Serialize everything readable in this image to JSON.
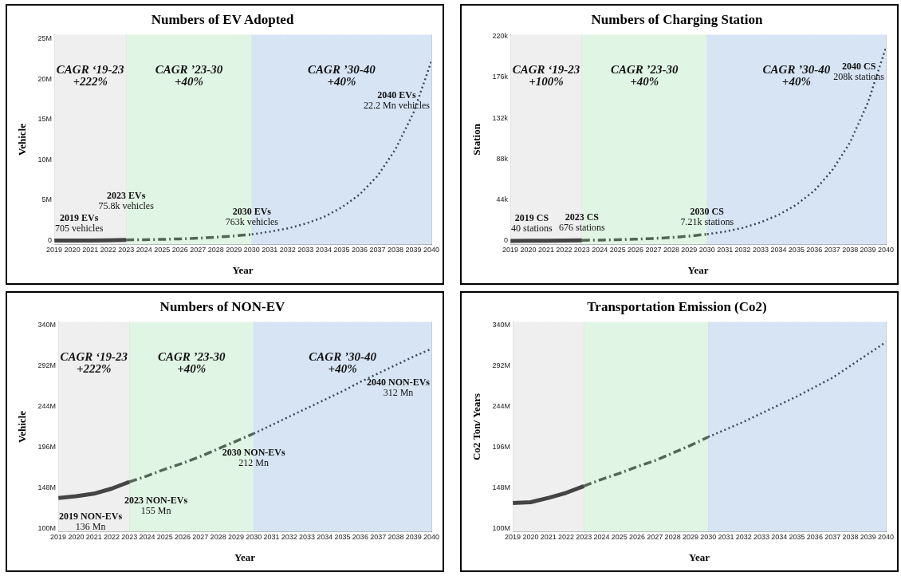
{
  "chart_data": [
    {
      "type": "line",
      "title": "Numbers of EV Adopted",
      "xlabel": "Year",
      "ylabel": "Vehicle",
      "xlim": [
        2019,
        2040
      ],
      "xticks": [
        2019,
        2020,
        2021,
        2022,
        2023,
        2024,
        2025,
        2026,
        2027,
        2028,
        2029,
        2030,
        2031,
        2032,
        2033,
        2034,
        2035,
        2036,
        2037,
        2038,
        2039,
        2040
      ],
      "ylim": [
        -500000,
        25500000
      ],
      "yticks": [
        {
          "value": 0,
          "label": "0"
        },
        {
          "value": 5000000,
          "label": "5M"
        },
        {
          "value": 10000000,
          "label": "10M"
        },
        {
          "value": 15000000,
          "label": "15M"
        },
        {
          "value": 20000000,
          "label": "20M"
        },
        {
          "value": 25000000,
          "label": "25M"
        }
      ],
      "grid": true,
      "marker": "none",
      "series": [
        {
          "color": "#444444",
          "line_style": "solid",
          "x": [
            2019,
            2020,
            2021,
            2022,
            2023
          ],
          "values": [
            705,
            2000,
            7000,
            24000,
            75800
          ]
        },
        {
          "color": "#556655",
          "line_style": "dashed",
          "x": [
            2023,
            2024,
            2025,
            2026,
            2027,
            2028,
            2029,
            2030
          ],
          "values": [
            75800,
            110000,
            150000,
            210000,
            290000,
            410000,
            570000,
            763000
          ]
        },
        {
          "color": "#3a4656",
          "line_style": "dotted",
          "x": [
            2030,
            2031,
            2032,
            2033,
            2034,
            2035,
            2036,
            2037,
            2038,
            2039,
            2040
          ],
          "values": [
            763000,
            1100000,
            1500000,
            2100000,
            2900000,
            4100000,
            5700000,
            8000000,
            11300000,
            15800000,
            22200000
          ]
        }
      ],
      "bands": [
        {
          "axis": "x",
          "from": 2019,
          "to": 2023,
          "color": "#efefef",
          "label": "CAGR ‘19-23\n+222%"
        },
        {
          "axis": "x",
          "from": 2023,
          "to": 2030,
          "color": "#e1f5e4",
          "label": "CAGR ’23-30\n+40%"
        },
        {
          "axis": "x",
          "from": 2030,
          "to": 2040,
          "color": "#d6e4f4",
          "label": "CAGR ’30-40\n+40%"
        }
      ],
      "annotations": [
        {
          "text": "2019 EVs\n705 vehicles",
          "x": 2019,
          "y": 705
        },
        {
          "text": "2023 EVs\n75.8k vehicles",
          "x": 2023,
          "y": 75800
        },
        {
          "text": "2030 EVs\n763k vehicles",
          "x": 2030,
          "y": 763000
        },
        {
          "text": "2040 EVs\n22.2 Mn vehicles",
          "x": 2040,
          "y": 22200000
        }
      ]
    },
    {
      "type": "line",
      "title": "Numbers of Charging Station",
      "xlabel": "Year",
      "ylabel": "Station",
      "xlim": [
        2019,
        2040
      ],
      "xticks": [
        2019,
        2020,
        2021,
        2022,
        2023,
        2024,
        2025,
        2026,
        2027,
        2028,
        2029,
        2030,
        2031,
        2032,
        2033,
        2034,
        2035,
        2036,
        2037,
        2038,
        2039,
        2040
      ],
      "ylim": [
        -4000,
        222000
      ],
      "yticks": [
        {
          "value": 0,
          "label": "0"
        },
        {
          "value": 44000,
          "label": "44k"
        },
        {
          "value": 88000,
          "label": "88k"
        },
        {
          "value": 132000,
          "label": "132k"
        },
        {
          "value": 176000,
          "label": "176k"
        },
        {
          "value": 220000,
          "label": "220k"
        }
      ],
      "grid": true,
      "marker": "none",
      "series": [
        {
          "color": "#444444",
          "line_style": "solid",
          "x": [
            2019,
            2020,
            2021,
            2022,
            2023
          ],
          "values": [
            40,
            80,
            170,
            330,
            676
          ]
        },
        {
          "color": "#556655",
          "line_style": "dashed",
          "x": [
            2023,
            2024,
            2025,
            2026,
            2027,
            2028,
            2029,
            2030
          ],
          "values": [
            676,
            900,
            1300,
            1900,
            2600,
            3600,
            5100,
            7210
          ]
        },
        {
          "color": "#3a4656",
          "line_style": "dotted",
          "x": [
            2030,
            2031,
            2032,
            2033,
            2034,
            2035,
            2036,
            2037,
            2038,
            2039,
            2040
          ],
          "values": [
            7210,
            10000,
            14000,
            20000,
            28000,
            39000,
            54000,
            76000,
            106000,
            149000,
            208000
          ]
        }
      ],
      "bands": [
        {
          "axis": "x",
          "from": 2019,
          "to": 2023,
          "color": "#efefef",
          "label": "CAGR ‘19-23\n+100%"
        },
        {
          "axis": "x",
          "from": 2023,
          "to": 2030,
          "color": "#e1f5e4",
          "label": "CAGR ’23-30\n+40%"
        },
        {
          "axis": "x",
          "from": 2030,
          "to": 2040,
          "color": "#d6e4f4",
          "label": "CAGR ’30-40\n+40%"
        }
      ],
      "annotations": [
        {
          "text": "2019 CS\n40 stations",
          "x": 2019,
          "y": 40
        },
        {
          "text": "2023 CS\n676 stations",
          "x": 2023,
          "y": 676
        },
        {
          "text": "2030 CS\n7.21k stations",
          "x": 2030,
          "y": 7210
        },
        {
          "text": "2040 CS\n208k stations",
          "x": 2040,
          "y": 208000
        }
      ]
    },
    {
      "type": "line",
      "title": "Numbers of NON-EV",
      "xlabel": "Year",
      "ylabel": "Vehicle",
      "xlim": [
        2019,
        2040
      ],
      "xticks": [
        2019,
        2020,
        2021,
        2022,
        2023,
        2024,
        2025,
        2026,
        2027,
        2028,
        2029,
        2030,
        2031,
        2032,
        2033,
        2034,
        2035,
        2036,
        2037,
        2038,
        2039,
        2040
      ],
      "ylim": [
        96000000,
        344000000
      ],
      "yticks": [
        {
          "value": 100000000,
          "label": "100M"
        },
        {
          "value": 148000000,
          "label": "148M"
        },
        {
          "value": 196000000,
          "label": "196M"
        },
        {
          "value": 244000000,
          "label": "244M"
        },
        {
          "value": 292000000,
          "label": "292M"
        },
        {
          "value": 340000000,
          "label": "340M"
        }
      ],
      "grid": true,
      "marker": "none",
      "series": [
        {
          "color": "#444444",
          "line_style": "solid",
          "x": [
            2019,
            2020,
            2021,
            2022,
            2023
          ],
          "values": [
            136000000,
            138000000,
            141000000,
            147000000,
            155000000
          ]
        },
        {
          "color": "#556655",
          "line_style": "dashed",
          "x": [
            2023,
            2024,
            2025,
            2026,
            2027,
            2028,
            2029,
            2030
          ],
          "values": [
            155000000,
            162000000,
            170000000,
            177000000,
            185000000,
            194000000,
            203000000,
            212000000
          ]
        },
        {
          "color": "#3a4656",
          "line_style": "dotted",
          "x": [
            2030,
            2031,
            2032,
            2033,
            2034,
            2035,
            2036,
            2037,
            2038,
            2039,
            2040
          ],
          "values": [
            212000000,
            222000000,
            232000000,
            242000000,
            252000000,
            262000000,
            273000000,
            283000000,
            293000000,
            303000000,
            312000000
          ]
        }
      ],
      "bands": [
        {
          "axis": "x",
          "from": 2019,
          "to": 2023,
          "color": "#efefef",
          "label": "CAGR ‘19-23\n+222%"
        },
        {
          "axis": "x",
          "from": 2023,
          "to": 2030,
          "color": "#e1f5e4",
          "label": "CAGR ’23-30\n+40%"
        },
        {
          "axis": "x",
          "from": 2030,
          "to": 2040,
          "color": "#d6e4f4",
          "label": "CAGR ’30-40\n+40%"
        }
      ],
      "annotations": [
        {
          "text": "2019 NON-EVs\n136 Mn",
          "x": 2019,
          "y": 136000000
        },
        {
          "text": "2023 NON-EVs\n155 Mn",
          "x": 2023,
          "y": 155000000
        },
        {
          "text": "2030 NON-EVs\n212 Mn",
          "x": 2030,
          "y": 212000000
        },
        {
          "text": "2040 NON-EVs\n312 Mn",
          "x": 2040,
          "y": 312000000
        }
      ]
    },
    {
      "type": "line",
      "title": "Transportation Emission (Co2)",
      "xlabel": "Year",
      "ylabel": "Co2 Ton/ Years",
      "xlim": [
        2019,
        2040
      ],
      "xticks": [
        2019,
        2020,
        2021,
        2022,
        2023,
        2024,
        2025,
        2026,
        2027,
        2028,
        2029,
        2030,
        2031,
        2032,
        2033,
        2034,
        2035,
        2036,
        2037,
        2038,
        2039,
        2040
      ],
      "ylim": [
        96000000,
        344000000
      ],
      "yticks": [
        {
          "value": 100000000,
          "label": "100M"
        },
        {
          "value": 148000000,
          "label": "148M"
        },
        {
          "value": 196000000,
          "label": "196M"
        },
        {
          "value": 244000000,
          "label": "244M"
        },
        {
          "value": 292000000,
          "label": "292M"
        },
        {
          "value": 340000000,
          "label": "340M"
        }
      ],
      "grid": true,
      "marker": "none",
      "series": [
        {
          "color": "#444444",
          "line_style": "solid",
          "x": [
            2019,
            2020,
            2021,
            2022,
            2023
          ],
          "values": [
            130000000,
            131000000,
            136000000,
            142000000,
            150000000
          ]
        },
        {
          "color": "#556655",
          "line_style": "dashed",
          "x": [
            2023,
            2024,
            2025,
            2026,
            2027,
            2028,
            2029,
            2030
          ],
          "values": [
            150000000,
            158000000,
            165000000,
            173000000,
            180000000,
            189000000,
            198000000,
            208000000
          ]
        },
        {
          "color": "#3a4656",
          "line_style": "dotted",
          "x": [
            2030,
            2031,
            2032,
            2033,
            2034,
            2035,
            2036,
            2037,
            2038,
            2039,
            2040
          ],
          "values": [
            208000000,
            217000000,
            226000000,
            236000000,
            246000000,
            256000000,
            267000000,
            278000000,
            292000000,
            306000000,
            320000000
          ]
        }
      ],
      "bands": [
        {
          "axis": "x",
          "from": 2019,
          "to": 2023,
          "color": "#efefef"
        },
        {
          "axis": "x",
          "from": 2023,
          "to": 2030,
          "color": "#e1f5e4"
        },
        {
          "axis": "x",
          "from": 2030,
          "to": 2040,
          "color": "#d6e4f4"
        }
      ]
    }
  ]
}
